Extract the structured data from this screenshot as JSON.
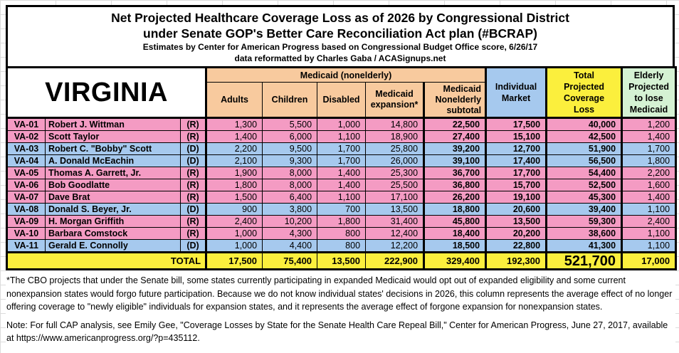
{
  "title": {
    "line1": "Net Projected Healthcare Coverage Loss as of 2026 by Congressional District",
    "line2": "under Senate GOP's Better Care Reconciliation Act plan (#BCRAP)",
    "line3": "Estimates by Center for American Progress based on Congressional Budget Office score, 6/26/17",
    "line4": "data reformatted by Charles Gaba / ACASignups.net"
  },
  "colors": {
    "republican_row_pink": "#F49BC3",
    "democrat_row_blue": "#A6C9EE",
    "medicaid_header_peach": "#F8CA9E",
    "coverage_loss_yellow": "#FBEF3D",
    "elderly_header_green": "#D5F2D3"
  },
  "table": {
    "state_label": "VIRGINIA",
    "group_header": "Medicaid (nonelderly)",
    "columns": {
      "adults": "Adults",
      "children": "Children",
      "disabled": "Disabled",
      "expansion": "Medicaid expansion*",
      "subtotal": "Medicaid Nonelderly subtotal",
      "individual_market": "Individual Market",
      "total_loss": "Total Projected Coverage Loss",
      "elderly": "Elderly Projected to lose Medicaid"
    },
    "rows": [
      {
        "district": "VA-01",
        "rep": "Robert J. Wittman",
        "party": "(R)",
        "values": [
          "1,300",
          "5,500",
          "1,000",
          "14,800",
          "22,500",
          "17,500",
          "40,000",
          "1,200"
        ]
      },
      {
        "district": "VA-02",
        "rep": "Scott Taylor",
        "party": "(R)",
        "values": [
          "1,400",
          "6,000",
          "1,100",
          "18,900",
          "27,400",
          "15,100",
          "42,500",
          "1,400"
        ]
      },
      {
        "district": "VA-03",
        "rep": "Robert C. \"Bobby\" Scott",
        "party": "(D)",
        "values": [
          "2,200",
          "9,500",
          "1,700",
          "25,800",
          "39,200",
          "12,700",
          "51,900",
          "1,700"
        ]
      },
      {
        "district": "VA-04",
        "rep": "A. Donald McEachin",
        "party": "(D)",
        "values": [
          "2,100",
          "9,300",
          "1,700",
          "26,000",
          "39,100",
          "17,400",
          "56,500",
          "1,800"
        ]
      },
      {
        "district": "VA-05",
        "rep": "Thomas A. Garrett, Jr.",
        "party": "(R)",
        "values": [
          "1,900",
          "8,000",
          "1,400",
          "25,300",
          "36,700",
          "17,700",
          "54,400",
          "2,200"
        ]
      },
      {
        "district": "VA-06",
        "rep": "Bob Goodlatte",
        "party": "(R)",
        "values": [
          "1,800",
          "8,000",
          "1,400",
          "25,500",
          "36,800",
          "15,700",
          "52,500",
          "1,600"
        ]
      },
      {
        "district": "VA-07",
        "rep": "Dave Brat",
        "party": "(R)",
        "values": [
          "1,500",
          "6,400",
          "1,100",
          "17,100",
          "26,200",
          "19,100",
          "45,300",
          "1,400"
        ]
      },
      {
        "district": "VA-08",
        "rep": "Donald S. Beyer, Jr.",
        "party": "(D)",
        "values": [
          "900",
          "3,800",
          "700",
          "13,500",
          "18,800",
          "20,600",
          "39,400",
          "1,100"
        ]
      },
      {
        "district": "VA-09",
        "rep": "H. Morgan Griffith",
        "party": "(R)",
        "values": [
          "2,400",
          "10,200",
          "1,800",
          "31,400",
          "45,800",
          "13,500",
          "59,300",
          "2,400"
        ]
      },
      {
        "district": "VA-10",
        "rep": "Barbara Comstock",
        "party": "(R)",
        "values": [
          "1,000",
          "4,300",
          "800",
          "12,400",
          "18,400",
          "20,200",
          "38,600",
          "1,100"
        ]
      },
      {
        "district": "VA-11",
        "rep": "Gerald E. Connolly",
        "party": "(D)",
        "values": [
          "1,000",
          "4,400",
          "800",
          "12,200",
          "18,500",
          "22,800",
          "41,300",
          "1,100"
        ]
      }
    ],
    "total": {
      "label": "TOTAL",
      "values": [
        "17,500",
        "75,400",
        "13,500",
        "222,900",
        "329,400",
        "192,300",
        "521,700",
        "17,000"
      ]
    }
  },
  "notes": {
    "footnote": "*The CBO projects that under the Senate bill, some states currently participating in expanded Medicaid would opt out of expanded eligibility and some current nonexpansion states would forgo future participation. Because we do not know individual states' decisions in 2026, this column represents the average effect of no longer offering coverage to \"newly eligible\" individuals for expansion states, and it represents the average effect of forgone expansion for nonexpansion states.",
    "cap_note": "Note: For full CAP analysis, see Emily Gee, \"Coverage Losses by State for the Senate Health Care Repeal Bill,\" Center for American Progress, June 27, 2017, available at https://www.americanprogress.org/?p=435112."
  },
  "chart_data": {
    "type": "table",
    "title": "Net Projected Healthcare Coverage Loss as of 2026 by Congressional District under Senate GOP's Better Care Reconciliation Act plan (#BCRAP)",
    "state": "Virginia",
    "columns": [
      "District",
      "Representative",
      "Party",
      "Medicaid nonelderly: Adults",
      "Medicaid nonelderly: Children",
      "Medicaid nonelderly: Disabled",
      "Medicaid expansion",
      "Medicaid Nonelderly subtotal",
      "Individual Market",
      "Total Projected Coverage Loss",
      "Elderly Projected to lose Medicaid"
    ],
    "rows": [
      [
        "VA-01",
        "Robert J. Wittman",
        "R",
        1300,
        5500,
        1000,
        14800,
        22500,
        17500,
        40000,
        1200
      ],
      [
        "VA-02",
        "Scott Taylor",
        "R",
        1400,
        6000,
        1100,
        18900,
        27400,
        15100,
        42500,
        1400
      ],
      [
        "VA-03",
        "Robert C. \"Bobby\" Scott",
        "D",
        2200,
        9500,
        1700,
        25800,
        39200,
        12700,
        51900,
        1700
      ],
      [
        "VA-04",
        "A. Donald McEachin",
        "D",
        2100,
        9300,
        1700,
        26000,
        39100,
        17400,
        56500,
        1800
      ],
      [
        "VA-05",
        "Thomas A. Garrett, Jr.",
        "R",
        1900,
        8000,
        1400,
        25300,
        36700,
        17700,
        54400,
        2200
      ],
      [
        "VA-06",
        "Bob Goodlatte",
        "R",
        1800,
        8000,
        1400,
        25500,
        36800,
        15700,
        52500,
        1600
      ],
      [
        "VA-07",
        "Dave Brat",
        "R",
        1500,
        6400,
        1100,
        17100,
        26200,
        19100,
        45300,
        1400
      ],
      [
        "VA-08",
        "Donald S. Beyer, Jr.",
        "D",
        900,
        3800,
        700,
        13500,
        18800,
        20600,
        39400,
        1100
      ],
      [
        "VA-09",
        "H. Morgan Griffith",
        "R",
        2400,
        10200,
        1800,
        31400,
        45800,
        13500,
        59300,
        2400
      ],
      [
        "VA-10",
        "Barbara Comstock",
        "R",
        1000,
        4300,
        800,
        12400,
        18400,
        20200,
        38600,
        1100
      ],
      [
        "VA-11",
        "Gerald E. Connolly",
        "D",
        1000,
        4400,
        800,
        12200,
        18500,
        22800,
        41300,
        1100
      ]
    ],
    "totals": [
      "TOTAL",
      "",
      "",
      17500,
      75400,
      13500,
      222900,
      329400,
      192300,
      521700,
      17000
    ]
  }
}
